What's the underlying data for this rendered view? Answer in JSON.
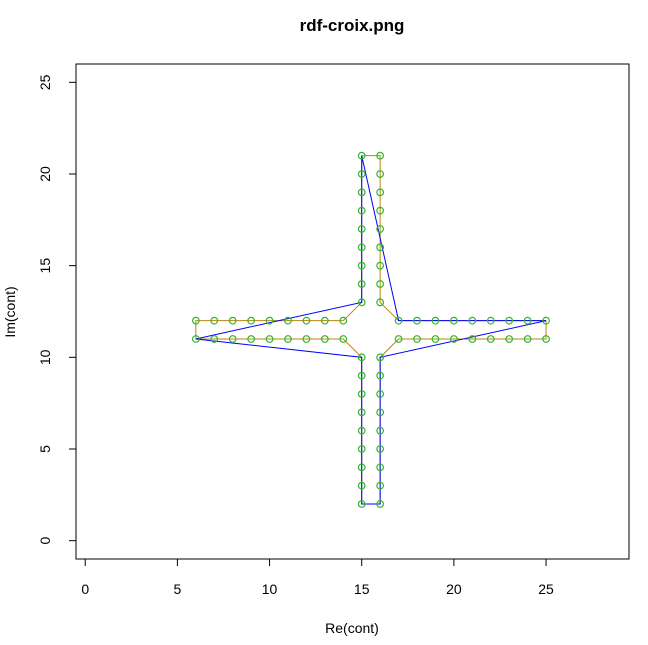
{
  "chart_data": {
    "type": "line",
    "title": "rdf-croix.png",
    "xlabel": "Re(cont)",
    "ylabel": "Im(cont)",
    "xlim": [
      -0.5,
      29.5
    ],
    "ylim": [
      -1,
      26
    ],
    "xticks": [
      0,
      5,
      10,
      15,
      20,
      25
    ],
    "yticks": [
      0,
      5,
      10,
      15,
      20,
      25
    ],
    "grid": false,
    "series": [
      {
        "style": "points+line",
        "line_color": "#b8860b",
        "marker_color": "#2eb82e",
        "marker": "open-circle",
        "closed": true,
        "x": [
          15,
          15,
          15,
          15,
          15,
          15,
          15,
          15,
          15,
          14,
          13,
          12,
          11,
          10,
          9,
          8,
          7,
          6,
          6,
          7,
          8,
          9,
          10,
          11,
          12,
          13,
          14,
          15,
          15,
          15,
          15,
          15,
          15,
          15,
          15,
          15,
          16,
          16,
          16,
          16,
          16,
          16,
          16,
          16,
          16,
          17,
          18,
          19,
          20,
          21,
          22,
          23,
          24,
          25,
          25,
          24,
          23,
          22,
          21,
          20,
          19,
          18,
          17,
          16,
          16,
          16,
          16,
          16,
          16,
          16,
          16,
          16
        ],
        "y": [
          2,
          3,
          4,
          5,
          6,
          7,
          8,
          9,
          10,
          11,
          11,
          11,
          11,
          11,
          11,
          11,
          11,
          11,
          12,
          12,
          12,
          12,
          12,
          12,
          12,
          12,
          12,
          13,
          14,
          15,
          16,
          17,
          18,
          19,
          20,
          21,
          21,
          20,
          19,
          18,
          17,
          16,
          15,
          14,
          13,
          12,
          12,
          12,
          12,
          12,
          12,
          12,
          12,
          12,
          11,
          11,
          11,
          11,
          11,
          11,
          11,
          11,
          11,
          10,
          9,
          8,
          7,
          6,
          5,
          4,
          3,
          2
        ]
      },
      {
        "style": "line",
        "line_color": "#0000ff",
        "closed": true,
        "x": [
          15,
          15,
          6,
          15,
          15,
          17,
          25,
          16,
          16
        ],
        "y": [
          2,
          10,
          11,
          13,
          21,
          12,
          12,
          10,
          2
        ]
      }
    ]
  }
}
